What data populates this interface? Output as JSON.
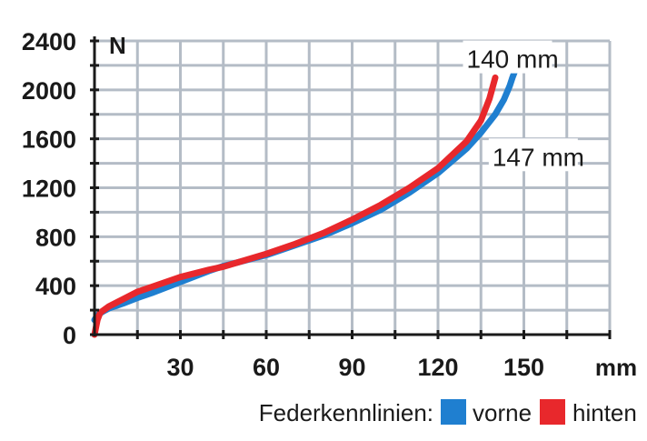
{
  "chart_data": {
    "type": "line",
    "ylabel": "N",
    "xlabel": "mm",
    "xlim": [
      0,
      180
    ],
    "ylim": [
      0,
      2400
    ],
    "x_ticks": [
      30,
      60,
      90,
      120,
      150
    ],
    "y_ticks": [
      0,
      400,
      800,
      1200,
      1600,
      2000,
      2400
    ],
    "grid": true,
    "legend_title": "Federkennlinien:",
    "legend_position": "bottom-right",
    "series": [
      {
        "name": "vorne",
        "color": "#1f7fd0",
        "x": [
          0,
          1,
          3,
          5,
          10,
          15,
          20,
          30,
          40,
          45,
          50,
          60,
          70,
          80,
          90,
          100,
          110,
          120,
          130,
          135,
          140,
          143,
          145,
          146,
          147
        ],
        "y": [
          120,
          160,
          190,
          215,
          255,
          300,
          340,
          430,
          520,
          560,
          590,
          650,
          730,
          810,
          910,
          1020,
          1160,
          1320,
          1520,
          1650,
          1800,
          1920,
          2030,
          2100,
          2160
        ]
      },
      {
        "name": "hinten",
        "color": "#e8282c",
        "x": [
          0,
          1,
          2,
          5,
          10,
          15,
          20,
          30,
          40,
          45,
          50,
          60,
          70,
          80,
          90,
          100,
          110,
          120,
          130,
          135,
          138,
          140
        ],
        "y": [
          0,
          120,
          180,
          230,
          290,
          350,
          390,
          470,
          530,
          555,
          590,
          660,
          740,
          830,
          940,
          1060,
          1200,
          1360,
          1580,
          1750,
          1930,
          2100
        ]
      }
    ],
    "annotations": [
      {
        "text": "140 mm",
        "x": 130,
        "y": 2180
      },
      {
        "text": "147 mm",
        "x": 139,
        "y": 1380
      }
    ]
  }
}
